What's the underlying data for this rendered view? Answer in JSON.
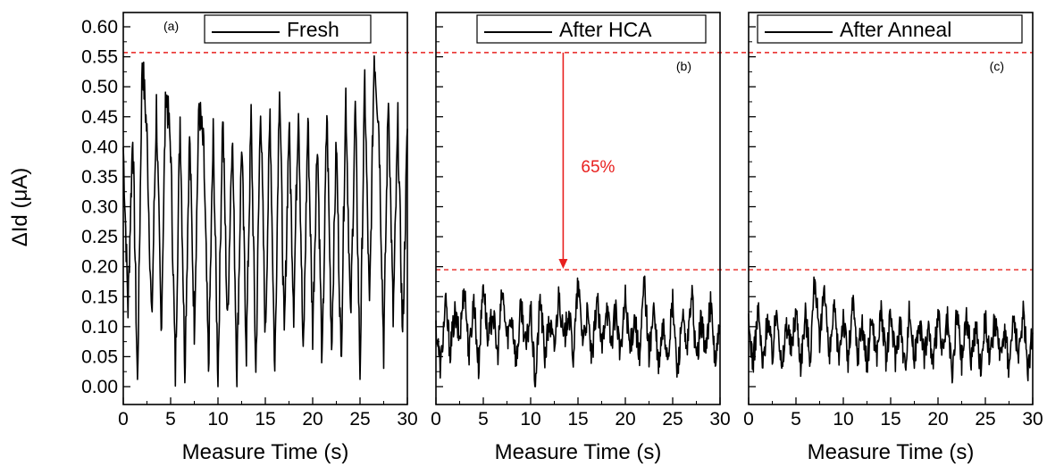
{
  "chart_data": {
    "type": "line",
    "ylabel": "ΔId (μA)",
    "ylim": [
      0.0,
      0.6
    ],
    "y_ticks": [
      "0.00",
      "0.05",
      "0.10",
      "0.15",
      "0.20",
      "0.25",
      "0.30",
      "0.35",
      "0.40",
      "0.45",
      "0.50",
      "0.55",
      "0.60"
    ],
    "reference_lines": [
      0.557,
      0.195
    ],
    "annotation": "65%",
    "colors": {
      "trace": "#000000",
      "reference": "#e8211f",
      "arrow": "#e8211f"
    },
    "panels": [
      {
        "tag": "(a)",
        "legend": "Fresh",
        "xlabel": "Measure Time (s)",
        "xlim": [
          0,
          30
        ],
        "x_ticks": [
          "0",
          "5",
          "10",
          "15",
          "20",
          "25",
          "30"
        ],
        "series": [
          {
            "name": "Fresh",
            "x": [
              0,
              0.5,
              1.0,
              1.5,
              2.0,
              2.5,
              3.0,
              3.5,
              4.0,
              4.5,
              5.0,
              5.5,
              6.0,
              6.5,
              7.0,
              7.5,
              8.0,
              8.5,
              9.0,
              9.5,
              10.0,
              10.5,
              11.0,
              11.5,
              12.0,
              12.5,
              13.0,
              13.5,
              14.0,
              14.5,
              15.0,
              15.5,
              16.0,
              16.5,
              17.0,
              17.5,
              18.0,
              18.5,
              19.0,
              19.5,
              20.0,
              20.5,
              21.0,
              21.5,
              22.0,
              22.5,
              23.0,
              23.5,
              24.0,
              24.5,
              25.0,
              25.5,
              26.0,
              26.5,
              27.0,
              27.5,
              28.0,
              28.5,
              29.0,
              29.5,
              30.0
            ],
            "y": [
              0.4,
              0.13,
              0.43,
              0.0,
              0.55,
              0.42,
              0.1,
              0.47,
              0.09,
              0.5,
              0.4,
              0.02,
              0.45,
              0.03,
              0.42,
              0.1,
              0.47,
              0.39,
              0.03,
              0.42,
              0.01,
              0.46,
              0.1,
              0.43,
              0.02,
              0.41,
              0.06,
              0.45,
              0.02,
              0.48,
              0.08,
              0.46,
              0.02,
              0.52,
              0.07,
              0.44,
              0.13,
              0.48,
              0.04,
              0.45,
              0.09,
              0.42,
              0.03,
              0.46,
              0.07,
              0.41,
              0.04,
              0.49,
              0.1,
              0.47,
              0.02,
              0.51,
              0.12,
              0.56,
              0.43,
              0.06,
              0.49,
              0.11,
              0.44,
              0.08,
              0.43
            ]
          }
        ]
      },
      {
        "tag": "(b)",
        "legend": "After HCA",
        "xlabel": "Measure Time (s)",
        "xlim": [
          0,
          30
        ],
        "x_ticks": [
          "0",
          "5",
          "10",
          "15",
          "20",
          "25",
          "30"
        ],
        "series": [
          {
            "name": "After HCA",
            "x": [
              0,
              0.5,
              1.0,
              1.5,
              2.0,
              2.5,
              3.0,
              3.5,
              4.0,
              4.5,
              5.0,
              5.5,
              6.0,
              6.5,
              7.0,
              7.5,
              8.0,
              8.5,
              9.0,
              9.5,
              10.0,
              10.5,
              11.0,
              11.5,
              12.0,
              12.5,
              13.0,
              13.5,
              14.0,
              14.5,
              15.0,
              15.5,
              16.0,
              16.5,
              17.0,
              17.5,
              18.0,
              18.5,
              19.0,
              19.5,
              20.0,
              20.5,
              21.0,
              21.5,
              22.0,
              22.5,
              23.0,
              23.5,
              24.0,
              24.5,
              25.0,
              25.5,
              26.0,
              26.5,
              27.0,
              27.5,
              28.0,
              28.5,
              29.0,
              29.5,
              30.0
            ],
            "y": [
              0.1,
              0.03,
              0.14,
              0.06,
              0.12,
              0.08,
              0.17,
              0.05,
              0.15,
              0.03,
              0.18,
              0.07,
              0.13,
              0.05,
              0.16,
              0.08,
              0.12,
              0.04,
              0.14,
              0.06,
              0.13,
              0.0,
              0.15,
              0.05,
              0.11,
              0.06,
              0.16,
              0.07,
              0.13,
              0.05,
              0.17,
              0.08,
              0.12,
              0.04,
              0.15,
              0.06,
              0.14,
              0.07,
              0.13,
              0.05,
              0.15,
              0.06,
              0.12,
              0.04,
              0.18,
              0.05,
              0.13,
              0.03,
              0.1,
              0.05,
              0.14,
              0.02,
              0.12,
              0.05,
              0.16,
              0.04,
              0.11,
              0.06,
              0.14,
              0.04,
              0.1
            ]
          }
        ]
      },
      {
        "tag": "(c)",
        "legend": "After Anneal",
        "xlabel": "Measure Time (s)",
        "xlim": [
          0,
          30
        ],
        "x_ticks": [
          "0",
          "5",
          "10",
          "15",
          "20",
          "25",
          "30"
        ],
        "series": [
          {
            "name": "After Anneal",
            "x": [
              0,
              0.5,
              1.0,
              1.5,
              2.0,
              2.5,
              3.0,
              3.5,
              4.0,
              4.5,
              5.0,
              5.5,
              6.0,
              6.5,
              7.0,
              7.5,
              8.0,
              8.5,
              9.0,
              9.5,
              10.0,
              10.5,
              11.0,
              11.5,
              12.0,
              12.5,
              13.0,
              13.5,
              14.0,
              14.5,
              15.0,
              15.5,
              16.0,
              16.5,
              17.0,
              17.5,
              18.0,
              18.5,
              19.0,
              19.5,
              20.0,
              20.5,
              21.0,
              21.5,
              22.0,
              22.5,
              23.0,
              23.5,
              24.0,
              24.5,
              25.0,
              25.5,
              26.0,
              26.5,
              27.0,
              27.5,
              28.0,
              28.5,
              29.0,
              29.5,
              30.0
            ],
            "y": [
              0.1,
              0.04,
              0.13,
              0.03,
              0.12,
              0.05,
              0.14,
              0.02,
              0.11,
              0.06,
              0.13,
              0.04,
              0.12,
              0.05,
              0.19,
              0.06,
              0.18,
              0.04,
              0.13,
              0.05,
              0.12,
              0.04,
              0.14,
              0.05,
              0.11,
              0.03,
              0.12,
              0.05,
              0.13,
              0.04,
              0.12,
              0.05,
              0.11,
              0.03,
              0.13,
              0.04,
              0.12,
              0.05,
              0.1,
              0.03,
              0.12,
              0.05,
              0.11,
              0.01,
              0.13,
              0.04,
              0.12,
              0.05,
              0.1,
              0.03,
              0.12,
              0.04,
              0.11,
              0.05,
              0.1,
              0.03,
              0.12,
              0.04,
              0.13,
              0.03,
              0.09
            ]
          }
        ]
      }
    ]
  }
}
